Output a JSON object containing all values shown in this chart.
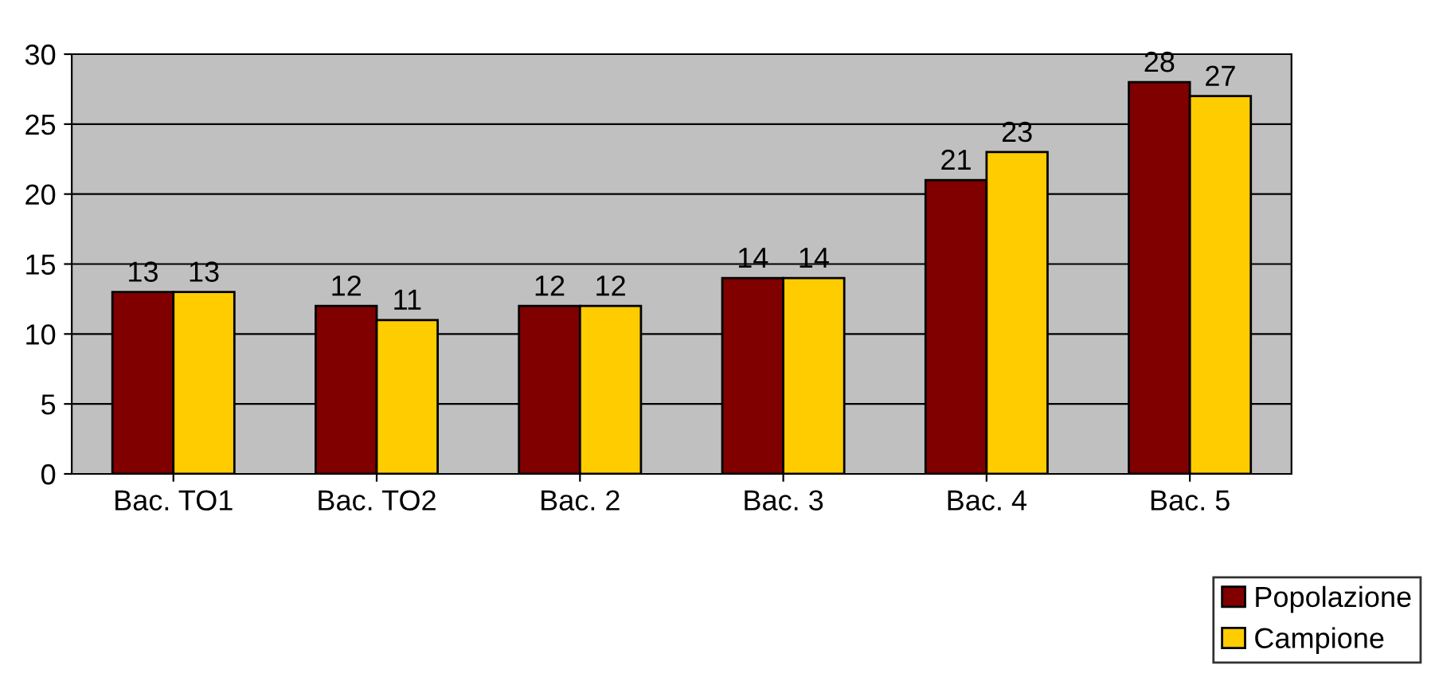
{
  "chart_data": {
    "type": "bar",
    "categories": [
      "Bac. TO1",
      "Bac. TO2",
      "Bac. 2",
      "Bac. 3",
      "Bac. 4",
      "Bac. 5"
    ],
    "series": [
      {
        "name": "Popolazione",
        "color": "#800000",
        "values": [
          13,
          12,
          12,
          14,
          21,
          28
        ]
      },
      {
        "name": "Campione",
        "color": "#ffcc00",
        "values": [
          13,
          11,
          12,
          14,
          23,
          27
        ]
      }
    ],
    "ylim": [
      0,
      30
    ],
    "yticks": [
      0,
      5,
      10,
      15,
      20,
      25,
      30
    ],
    "grid": "y",
    "legend": "bottom right",
    "data_labels": true
  }
}
